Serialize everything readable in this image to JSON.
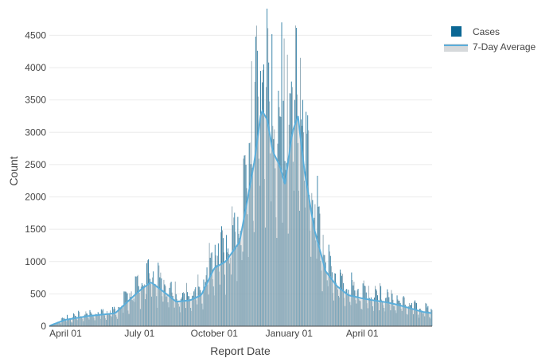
{
  "chart_data": {
    "type": "bar",
    "xlabel": "Report Date",
    "ylabel": "Count",
    "x_range": [
      "2020-03-12",
      "2021-06-26"
    ],
    "ylim": [
      0,
      4800
    ],
    "y_ticks": [
      0,
      500,
      1000,
      1500,
      2000,
      2500,
      3000,
      3500,
      4000,
      4500
    ],
    "y_tick_labels": [
      "0",
      "500",
      "1000",
      "1500",
      "2000",
      "2500",
      "3000",
      "3500",
      "4000",
      "4500"
    ],
    "x_ticks": [
      "2020-04-01",
      "2020-07-01",
      "2020-10-01",
      "2021-01-01",
      "2021-04-01"
    ],
    "x_tick_labels": [
      "April 01",
      "July 01",
      "October 01",
      "January 01",
      "April 01"
    ],
    "grid": true,
    "legend_position": "top-right",
    "series": [
      {
        "name": "Cases",
        "kind": "bar",
        "color": "#0b6794",
        "weekly_avg_anchors": {
          "x": [
            "2020-03-15",
            "2020-04-01",
            "2020-05-01",
            "2020-06-01",
            "2020-07-01",
            "2020-07-15",
            "2020-08-01",
            "2020-08-15",
            "2020-09-01",
            "2020-09-15",
            "2020-10-01",
            "2020-10-15",
            "2020-11-01",
            "2020-11-10",
            "2020-11-20",
            "2020-11-28",
            "2020-12-05",
            "2020-12-12",
            "2020-12-20",
            "2020-12-27",
            "2021-01-05",
            "2021-01-12",
            "2021-01-20",
            "2021-02-01",
            "2021-02-15",
            "2021-03-01",
            "2021-03-15",
            "2021-04-01",
            "2021-04-15",
            "2021-05-01",
            "2021-05-15",
            "2021-06-01",
            "2021-06-15",
            "2021-06-26"
          ],
          "y": [
            20,
            100,
            160,
            200,
            550,
            680,
            520,
            380,
            400,
            480,
            900,
            1000,
            1300,
            1900,
            2600,
            3350,
            3200,
            2700,
            2500,
            2200,
            3000,
            3250,
            2400,
            1500,
            850,
            620,
            480,
            430,
            400,
            370,
            330,
            270,
            220,
            200
          ]
        },
        "spikes": [
          {
            "x": "2020-11-16",
            "y": 4100
          },
          {
            "x": "2020-11-22",
            "y": 4650
          },
          {
            "x": "2020-11-27",
            "y": 3950
          },
          {
            "x": "2020-12-01",
            "y": 4050
          },
          {
            "x": "2020-12-04",
            "y": 3700
          },
          {
            "x": "2020-12-23",
            "y": 4700
          },
          {
            "x": "2020-12-26",
            "y": 4450
          },
          {
            "x": "2020-12-30",
            "y": 4200
          },
          {
            "x": "2021-01-05",
            "y": 3700
          },
          {
            "x": "2021-01-08",
            "y": 3500
          }
        ]
      },
      {
        "name": "7-Day Average",
        "kind": "area-line",
        "color": "#5aaedb",
        "fill": "#c5c9cc",
        "x": [
          "2020-03-15",
          "2020-04-01",
          "2020-05-01",
          "2020-06-01",
          "2020-07-01",
          "2020-07-15",
          "2020-08-01",
          "2020-08-15",
          "2020-09-01",
          "2020-09-15",
          "2020-10-01",
          "2020-10-15",
          "2020-11-01",
          "2020-11-10",
          "2020-11-20",
          "2020-11-28",
          "2020-12-05",
          "2020-12-12",
          "2020-12-20",
          "2020-12-27",
          "2021-01-05",
          "2021-01-12",
          "2021-01-20",
          "2021-02-01",
          "2021-02-15",
          "2021-03-01",
          "2021-03-15",
          "2021-04-01",
          "2021-04-15",
          "2021-05-01",
          "2021-05-15",
          "2021-06-01",
          "2021-06-15",
          "2021-06-26"
        ],
        "y": [
          20,
          100,
          160,
          200,
          550,
          680,
          520,
          380,
          400,
          480,
          900,
          1000,
          1300,
          1900,
          2600,
          3350,
          3200,
          2700,
          2500,
          2200,
          3000,
          3250,
          2400,
          1500,
          850,
          620,
          480,
          430,
          400,
          370,
          330,
          270,
          220,
          200
        ]
      }
    ]
  }
}
